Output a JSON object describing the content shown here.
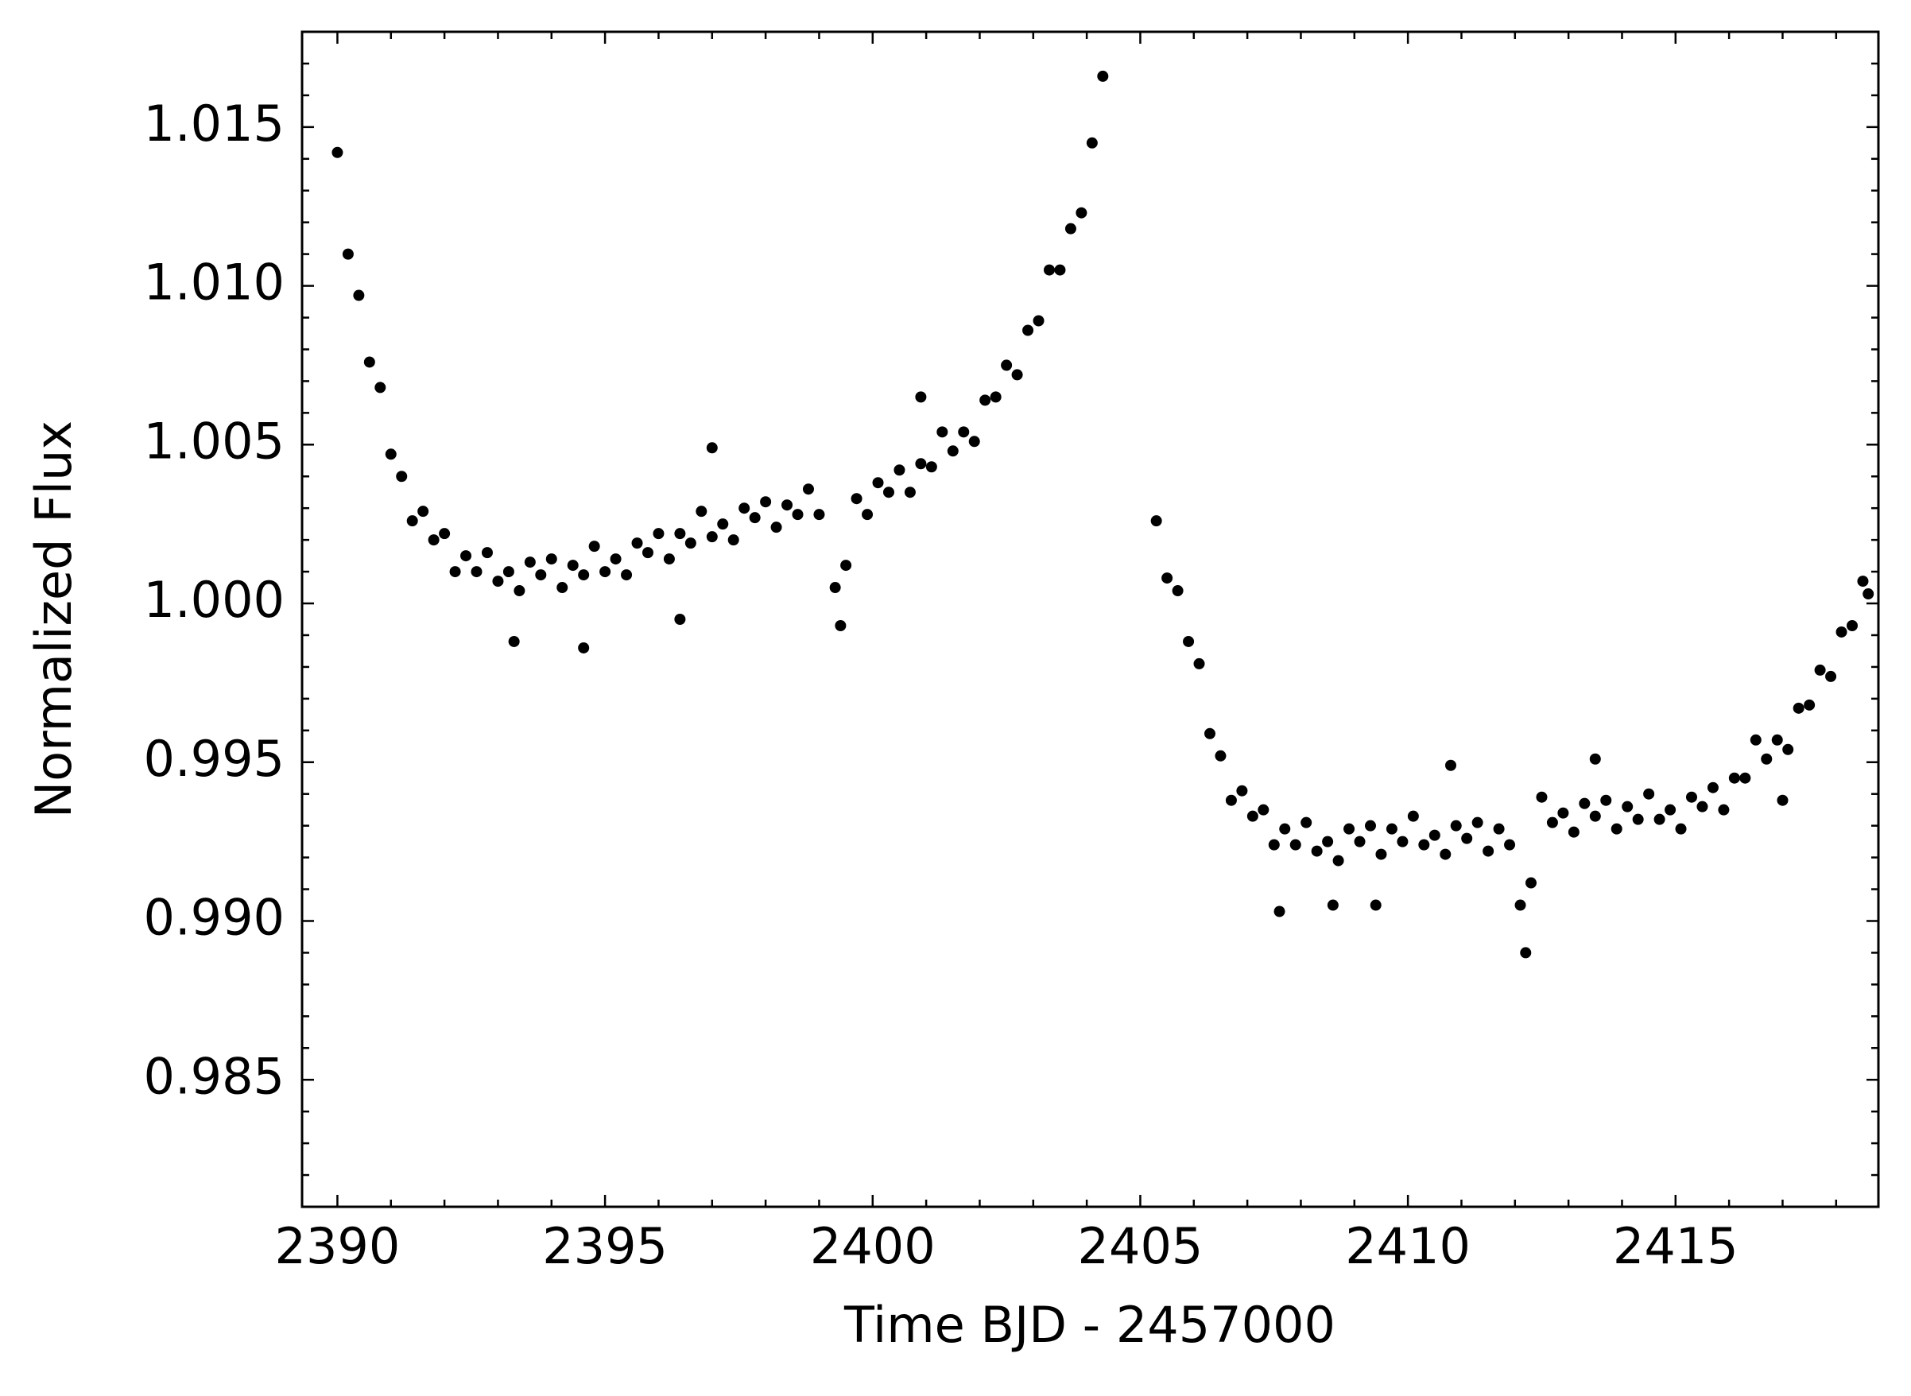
{
  "chart_data": {
    "type": "scatter",
    "xlabel": "Time BJD - 2457000",
    "ylabel": "Normalized Flux",
    "color": "#000000",
    "xlim": [
      2389.34,
      2418.79
    ],
    "ylim": [
      0.981,
      1.018
    ],
    "xticks": [
      2390,
      2395,
      2400,
      2405,
      2410,
      2415
    ],
    "yticks": [
      0.985,
      {
        "value": 0.99,
        "label": "0.990"
      },
      0.995,
      {
        "value": 1,
        "label": "1.000"
      },
      1.005,
      {
        "value": 1.01,
        "label": "1.010"
      },
      1.015
    ],
    "x": [
      2390.0,
      2390.2,
      2390.4,
      2390.6,
      2390.8,
      2391.0,
      2391.2,
      2391.4,
      2391.6,
      2391.8,
      2392.0,
      2392.2,
      2392.4,
      2392.6,
      2392.8,
      2393.0,
      2393.2,
      2393.4,
      2393.6,
      2393.8,
      2394.0,
      2394.2,
      2394.4,
      2394.6,
      2394.8,
      2395.0,
      2395.2,
      2395.4,
      2395.6,
      2395.8,
      2396.0,
      2396.2,
      2396.4,
      2396.6,
      2396.8,
      2397.0,
      2397.2,
      2397.4,
      2397.6,
      2397.8,
      2398.0,
      2398.2,
      2398.4,
      2398.6,
      2398.8,
      2399.0,
      2399.3,
      2399.4,
      2399.5,
      2399.7,
      2399.9,
      2400.1,
      2400.3,
      2400.5,
      2400.7,
      2400.9,
      2401.1,
      2401.3,
      2401.5,
      2401.7,
      2401.9,
      2402.1,
      2402.3,
      2402.5,
      2402.7,
      2402.9,
      2403.1,
      2403.3,
      2403.5,
      2403.7,
      2403.9,
      2404.1,
      2404.3,
      2393.3,
      2394.6,
      2397.0,
      2400.9,
      2396.4,
      2405.3,
      2405.5,
      2405.7,
      2405.9,
      2406.1,
      2406.3,
      2406.5,
      2406.7,
      2406.9,
      2407.1,
      2407.3,
      2407.5,
      2407.7,
      2407.9,
      2408.1,
      2408.3,
      2408.5,
      2408.7,
      2408.9,
      2409.1,
      2409.3,
      2409.5,
      2409.7,
      2409.9,
      2410.1,
      2410.3,
      2410.5,
      2410.7,
      2410.9,
      2411.1,
      2411.3,
      2411.5,
      2411.7,
      2411.9,
      2412.1,
      2412.2,
      2412.3,
      2412.5,
      2412.7,
      2412.9,
      2413.1,
      2413.3,
      2413.5,
      2413.7,
      2413.9,
      2414.1,
      2414.3,
      2414.5,
      2414.7,
      2414.9,
      2415.1,
      2415.3,
      2415.5,
      2415.7,
      2415.9,
      2416.1,
      2416.3,
      2416.5,
      2416.7,
      2416.9,
      2417.1,
      2417.3,
      2417.5,
      2417.7,
      2417.9,
      2418.1,
      2418.3,
      2418.5,
      2418.6,
      2407.6,
      2408.6,
      2409.4,
      2410.8,
      2413.5,
      2417.0
    ],
    "y": [
      1.0142,
      1.011,
      1.0097,
      1.0076,
      1.0068,
      1.0047,
      1.004,
      1.0026,
      1.0029,
      1.002,
      1.0022,
      1.001,
      1.0015,
      1.001,
      1.0016,
      1.0007,
      1.001,
      1.0004,
      1.0013,
      1.0009,
      1.0014,
      1.0005,
      1.0012,
      1.0009,
      1.0018,
      1.001,
      1.0014,
      1.0009,
      1.0019,
      1.0016,
      1.0022,
      1.0014,
      1.0022,
      1.0019,
      1.0029,
      1.0021,
      1.0025,
      1.002,
      1.003,
      1.0027,
      1.0032,
      1.0024,
      1.0031,
      1.0028,
      1.0036,
      1.0028,
      1.0005,
      0.9993,
      1.0012,
      1.0033,
      1.0028,
      1.0038,
      1.0035,
      1.0042,
      1.0035,
      1.0044,
      1.0043,
      1.0054,
      1.0048,
      1.0054,
      1.0051,
      1.0064,
      1.0065,
      1.0075,
      1.0072,
      1.0086,
      1.0089,
      1.0105,
      1.0105,
      1.0118,
      1.0123,
      1.0145,
      1.0166,
      0.9988,
      0.9986,
      1.0049,
      1.0065,
      0.9995,
      1.0026,
      1.0008,
      1.0004,
      0.9988,
      0.9981,
      0.9959,
      0.9952,
      0.9938,
      0.9941,
      0.9933,
      0.9935,
      0.9924,
      0.9929,
      0.9924,
      0.9931,
      0.9922,
      0.9925,
      0.9919,
      0.9929,
      0.9925,
      0.993,
      0.9921,
      0.9929,
      0.9925,
      0.9933,
      0.9924,
      0.9927,
      0.9921,
      0.993,
      0.9926,
      0.9931,
      0.9922,
      0.9929,
      0.9924,
      0.9905,
      0.989,
      0.9912,
      0.9939,
      0.9931,
      0.9934,
      0.9928,
      0.9937,
      0.9933,
      0.9938,
      0.9929,
      0.9936,
      0.9932,
      0.994,
      0.9932,
      0.9935,
      0.9929,
      0.9939,
      0.9936,
      0.9942,
      0.9935,
      0.9945,
      0.9945,
      0.9957,
      0.9951,
      0.9957,
      0.9954,
      0.9967,
      0.9968,
      0.9979,
      0.9977,
      0.9991,
      0.9993,
      1.0007,
      1.0003,
      0.9903,
      0.9905,
      0.9905,
      0.9949,
      0.9951,
      0.9938
    ]
  }
}
